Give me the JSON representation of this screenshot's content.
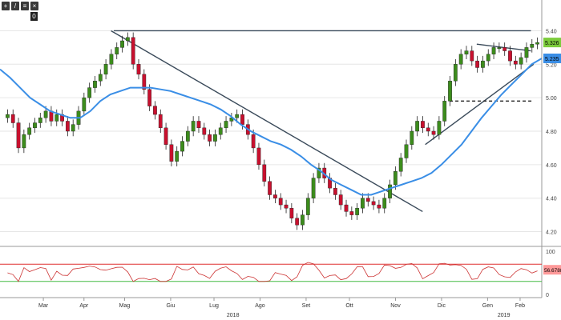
{
  "toolbar": {
    "buttons": [
      {
        "icon": "plus-icon",
        "glyph": "+"
      },
      {
        "icon": "draw-line-icon",
        "glyph": "/"
      },
      {
        "icon": "settings-icon",
        "glyph": "≡"
      },
      {
        "icon": "close-icon",
        "glyph": "×"
      }
    ],
    "badge": "0"
  },
  "colors": {
    "up": "#3c8c1c",
    "down": "#c8102e",
    "ma": "#3a8ee6",
    "trendline": "#3a4a5a",
    "rsi": "#cc3333",
    "rsi_upper": "#e03030",
    "rsi_lower": "#44bb44",
    "last_price_bg": "#7ccc3c",
    "ma_label_bg": "#3a8ee6"
  },
  "chart_data": {
    "type": "candlestick",
    "title": "",
    "xlabel": "",
    "ylabel": "",
    "ylim": [
      4.15,
      5.45
    ],
    "y_ticks": [
      "5.40",
      "5.20",
      "5.00",
      "4.80",
      "4.60",
      "4.40",
      "4.20"
    ],
    "x_months": [
      "Mar",
      "Apr",
      "Mag",
      "Giu",
      "Lug",
      "Ago",
      "Set",
      "Ott",
      "Nov",
      "Dic",
      "Gen",
      "Feb"
    ],
    "x_years": [
      "2018",
      "2019"
    ],
    "last_price_label": "5.326",
    "ma_label": "5.235",
    "closes": [
      4.9,
      4.85,
      4.7,
      4.78,
      4.82,
      4.85,
      4.88,
      4.92,
      4.86,
      4.9,
      4.86,
      4.8,
      4.84,
      4.92,
      5.0,
      5.06,
      5.1,
      5.14,
      5.2,
      5.26,
      5.3,
      5.34,
      5.36,
      5.2,
      5.14,
      5.05,
      4.95,
      4.9,
      4.82,
      4.72,
      4.62,
      4.68,
      4.74,
      4.8,
      4.86,
      4.82,
      4.78,
      4.74,
      4.78,
      4.82,
      4.86,
      4.88,
      4.9,
      4.84,
      4.78,
      4.7,
      4.6,
      4.5,
      4.42,
      4.4,
      4.36,
      4.34,
      4.28,
      4.24,
      4.3,
      4.4,
      4.52,
      4.58,
      4.52,
      4.46,
      4.42,
      4.36,
      4.32,
      4.3,
      4.34,
      4.4,
      4.38,
      4.36,
      4.34,
      4.4,
      4.48,
      4.56,
      4.64,
      4.72,
      4.8,
      4.86,
      4.82,
      4.8,
      4.78,
      4.86,
      4.98,
      5.1,
      5.2,
      5.26,
      5.28,
      5.22,
      5.18,
      5.22,
      5.26,
      5.3,
      5.3,
      5.28,
      5.22,
      5.2,
      5.24,
      5.3,
      5.32,
      5.33
    ],
    "ma_values": [
      5.17,
      5.12,
      5.06,
      5.0,
      4.96,
      4.92,
      4.9,
      4.88,
      4.88,
      4.92,
      4.98,
      5.02,
      5.04,
      5.06,
      5.06,
      5.06,
      5.05,
      5.04,
      5.02,
      5.0,
      4.98,
      4.96,
      4.93,
      4.89,
      4.84,
      4.8,
      4.77,
      4.74,
      4.72,
      4.69,
      4.65,
      4.6,
      4.56,
      4.51,
      4.48,
      4.45,
      4.42,
      4.42,
      4.44,
      4.46,
      4.48,
      4.5,
      4.52,
      4.55,
      4.6,
      4.66,
      4.72,
      4.8,
      4.88,
      4.95,
      5.02,
      5.08,
      5.14,
      5.2,
      5.235
    ],
    "trendlines": [
      {
        "x": [
          0.205,
          0.78
        ],
        "y": [
          5.4,
          4.32
        ]
      },
      {
        "x": [
          0.21,
          0.98
        ],
        "y": [
          5.4,
          5.4
        ]
      },
      {
        "x": [
          0.785,
          0.985
        ],
        "y": [
          4.72,
          5.2
        ]
      },
      {
        "x": [
          0.88,
          0.98
        ],
        "y": [
          5.32,
          5.28
        ]
      }
    ],
    "support_dashed": {
      "x": [
        0.83,
        0.985
      ],
      "y": [
        4.98,
        4.98
      ]
    },
    "rsi": {
      "name": "",
      "ylim": [
        0,
        100
      ],
      "y_ticks": [
        "100",
        "0"
      ],
      "upper": 70,
      "lower": 30,
      "last_label": "56.6788"
    }
  }
}
